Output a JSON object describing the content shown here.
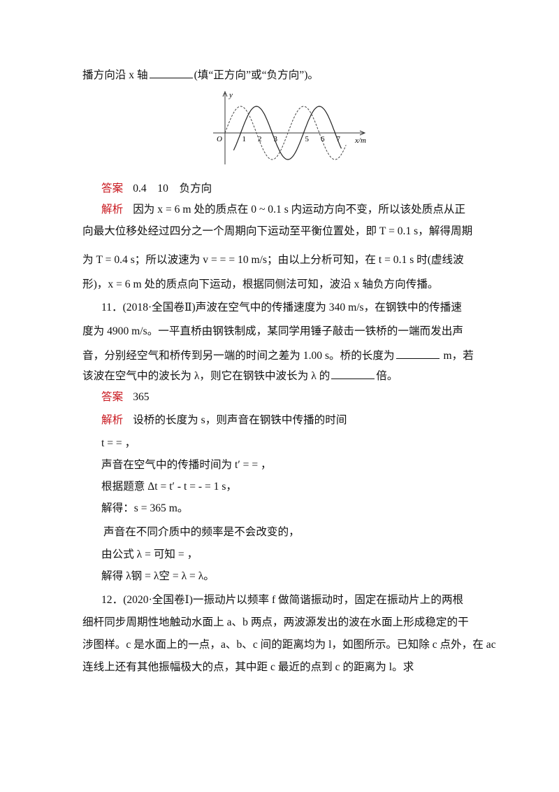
{
  "lines": [
    {
      "parts": [
        "播方向沿 x 轴",
        "(填“正方向”或“负方向”)。"
      ]
    },
    {
      "tag": "答案",
      "parts": [
        "0.4　10　负方向"
      ]
    },
    {
      "tag": "解析",
      "parts": [
        "因为 x = 6 m 处的质点在 0 ~ 0.1 s 内运动方向不变，所以该处质点从正"
      ]
    },
    {
      "parts": [
        "向最大位移处经过四分之一个周期向下运动至平衡位置处，即 T = 0.1 s，解得周期"
      ]
    },
    {
      "parts": [
        "为 T = 0.4 s；所以波速为 v = = = 10 m/s；由以上分析可知，在 t = 0.1 s 时(虚线波"
      ]
    },
    {
      "parts": [
        "形)，x = 6 m 处的质点向下运动，根据同侧法可知，波沿 x 轴负方向传播。"
      ]
    },
    {
      "parts": [
        "11．(2018·全国卷Ⅱ)声波在空气中的传播速度为 340 m/s，在钢铁中的传播速"
      ]
    },
    {
      "parts": [
        "度为 4900 m/s。一平直桥由钢铁制成，某同学用锤子敲击一铁桥的一端而发出声"
      ]
    },
    {
      "parts": [
        "音，分别经空气和桥传到另一端的时间之差为 1.00 s。桥的长度为",
        " m，若"
      ]
    },
    {
      "parts": [
        "该波在空气中的波长为 λ，则它在钢铁中波长为 λ 的",
        "倍。"
      ]
    },
    {
      "tag": "答案",
      "parts": [
        "365"
      ]
    },
    {
      "tag": "解析",
      "parts": [
        "设桥的长度为 s，则声音在钢铁中传播的时间"
      ]
    },
    {
      "parts": [
        "t = = ，"
      ]
    },
    {
      "parts": [
        "声音在空气中的传播时间为 t′ = = ，"
      ]
    },
    {
      "parts": [
        "根据题意 Δt = t′ - t = - = 1 s，"
      ]
    },
    {
      "parts": [
        "解得：s = 365 m。"
      ]
    },
    {
      "parts": [
        "声音在不同介质中的频率是不会改变的，"
      ]
    },
    {
      "parts": [
        "由公式 λ = 可知 = ，"
      ]
    },
    {
      "parts": [
        "解得 λ钢 = λ空 = λ = λ。"
      ]
    },
    {
      "parts": [
        "12．(2020·全国卷Ⅰ)一振动片以频率 f 做简谐振动时，固定在振动片上的两根"
      ]
    },
    {
      "parts": [
        "细杆同步周期性地触动水面上 a、b 两点，两波源发出的波在水面上形成稳定的干"
      ]
    },
    {
      "parts": [
        "涉图样。c 是水面上的一点，a、b、c 间的距离均为 l，如图所示。已知除 c 点外，在 ac"
      ]
    },
    {
      "parts": [
        "连线上还有其他振幅极大的点，其中距 c 最近的点到 c 的距离为 l。求"
      ]
    }
  ],
  "figure": {
    "y_label": "y",
    "origin": "O",
    "x_label": "x/m",
    "ticks": [
      "1",
      "2",
      "3",
      "5",
      "6",
      "7"
    ]
  }
}
